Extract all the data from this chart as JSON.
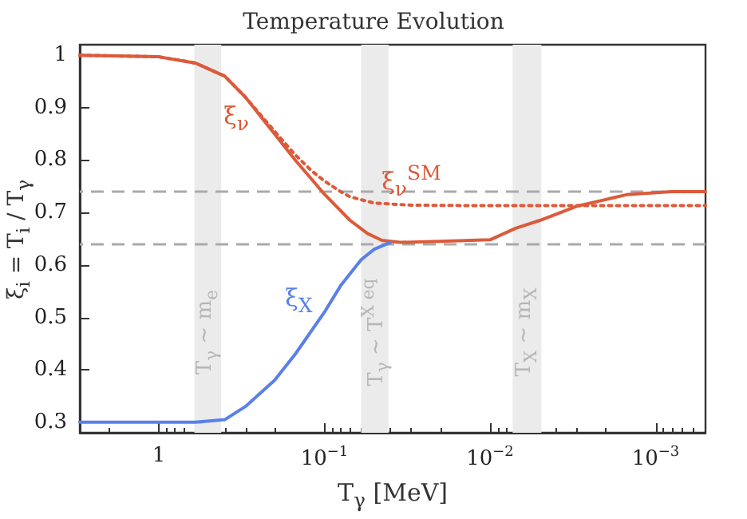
{
  "chart_data": {
    "type": "line",
    "title": "Temperature Evolution",
    "xlabel": "T$_{γ}$ [MeV]",
    "ylabel": "ξ$_{i}$ = T$_{i}$ / T$_{γ}$",
    "log": "x",
    "xlim": [
      3,
      0.0005
    ],
    "xticks": [
      1,
      {
        "value": 0.1,
        "label": "10$^{−1}$"
      },
      {
        "value": 0.01,
        "label": "10$^{−2}$"
      },
      {
        "value": 0.001,
        "label": "10$^{−3}$"
      }
    ],
    "ylim": [
      0.28,
      1.02
    ],
    "yticks": [
      0.3,
      0.4,
      0.5,
      0.6,
      0.7,
      0.8,
      0.9,
      1
    ],
    "grid": false,
    "marker": "none",
    "series": [
      {
        "name": "ξ$_{ν}$$^{SM}$",
        "color": "#dc5a3a",
        "line_style": "dotted",
        "x": [
          3,
          1,
          0.6,
          0.4,
          0.3,
          0.2,
          0.15,
          0.12,
          0.1,
          0.08,
          0.07,
          0.05,
          0.03,
          0.01,
          0.003,
          0.0005
        ],
        "values": [
          1.0,
          0.997,
          0.985,
          0.96,
          0.92,
          0.855,
          0.81,
          0.78,
          0.76,
          0.74,
          0.73,
          0.718,
          0.714,
          0.713,
          0.713,
          0.713
        ]
      },
      {
        "name": "ξ$_{ν}$",
        "color": "#dc5a3a",
        "line_style": "solid",
        "x": [
          3,
          1,
          0.6,
          0.4,
          0.3,
          0.2,
          0.15,
          0.1,
          0.07,
          0.055,
          0.045,
          0.035,
          0.02,
          0.01,
          0.007,
          0.005,
          0.003,
          0.0015,
          0.0008,
          0.0005
        ],
        "values": [
          1.0,
          0.997,
          0.985,
          0.96,
          0.92,
          0.85,
          0.8,
          0.735,
          0.685,
          0.66,
          0.647,
          0.643,
          0.645,
          0.648,
          0.67,
          0.685,
          0.712,
          0.734,
          0.74,
          0.74
        ]
      },
      {
        "name": "ξ$_{X}$",
        "color": "#5a80e8",
        "line_style": "solid",
        "x": [
          3,
          0.6,
          0.4,
          0.3,
          0.2,
          0.15,
          0.1,
          0.08,
          0.06,
          0.05,
          0.04
        ],
        "values": [
          0.3,
          0.3,
          0.305,
          0.33,
          0.38,
          0.43,
          0.51,
          0.56,
          0.61,
          0.63,
          0.643
        ]
      }
    ],
    "ref_lines": [
      {
        "axis": "y",
        "value": 0.74,
        "color": "#aaaaaa",
        "line_style": "dashed"
      },
      {
        "axis": "y",
        "value": 0.643,
        "color": "#aaaaaa",
        "line_style": "dashed"
      }
    ],
    "bands": [
      {
        "axis": "x",
        "from": 0.61,
        "to": 0.42,
        "label": "T$_{γ}$ ~ m$_{e}$",
        "color": "#ebebeb"
      },
      {
        "axis": "x",
        "from": 0.06,
        "to": 0.041,
        "label": "T$_{γ}$ ~ T$^{X eq}$",
        "color": "#ebebeb"
      },
      {
        "axis": "x",
        "from": 0.0073,
        "to": 0.0049,
        "label": "T$_{X}$ ~ m$_{X}$",
        "color": "#ebebeb"
      }
    ]
  }
}
